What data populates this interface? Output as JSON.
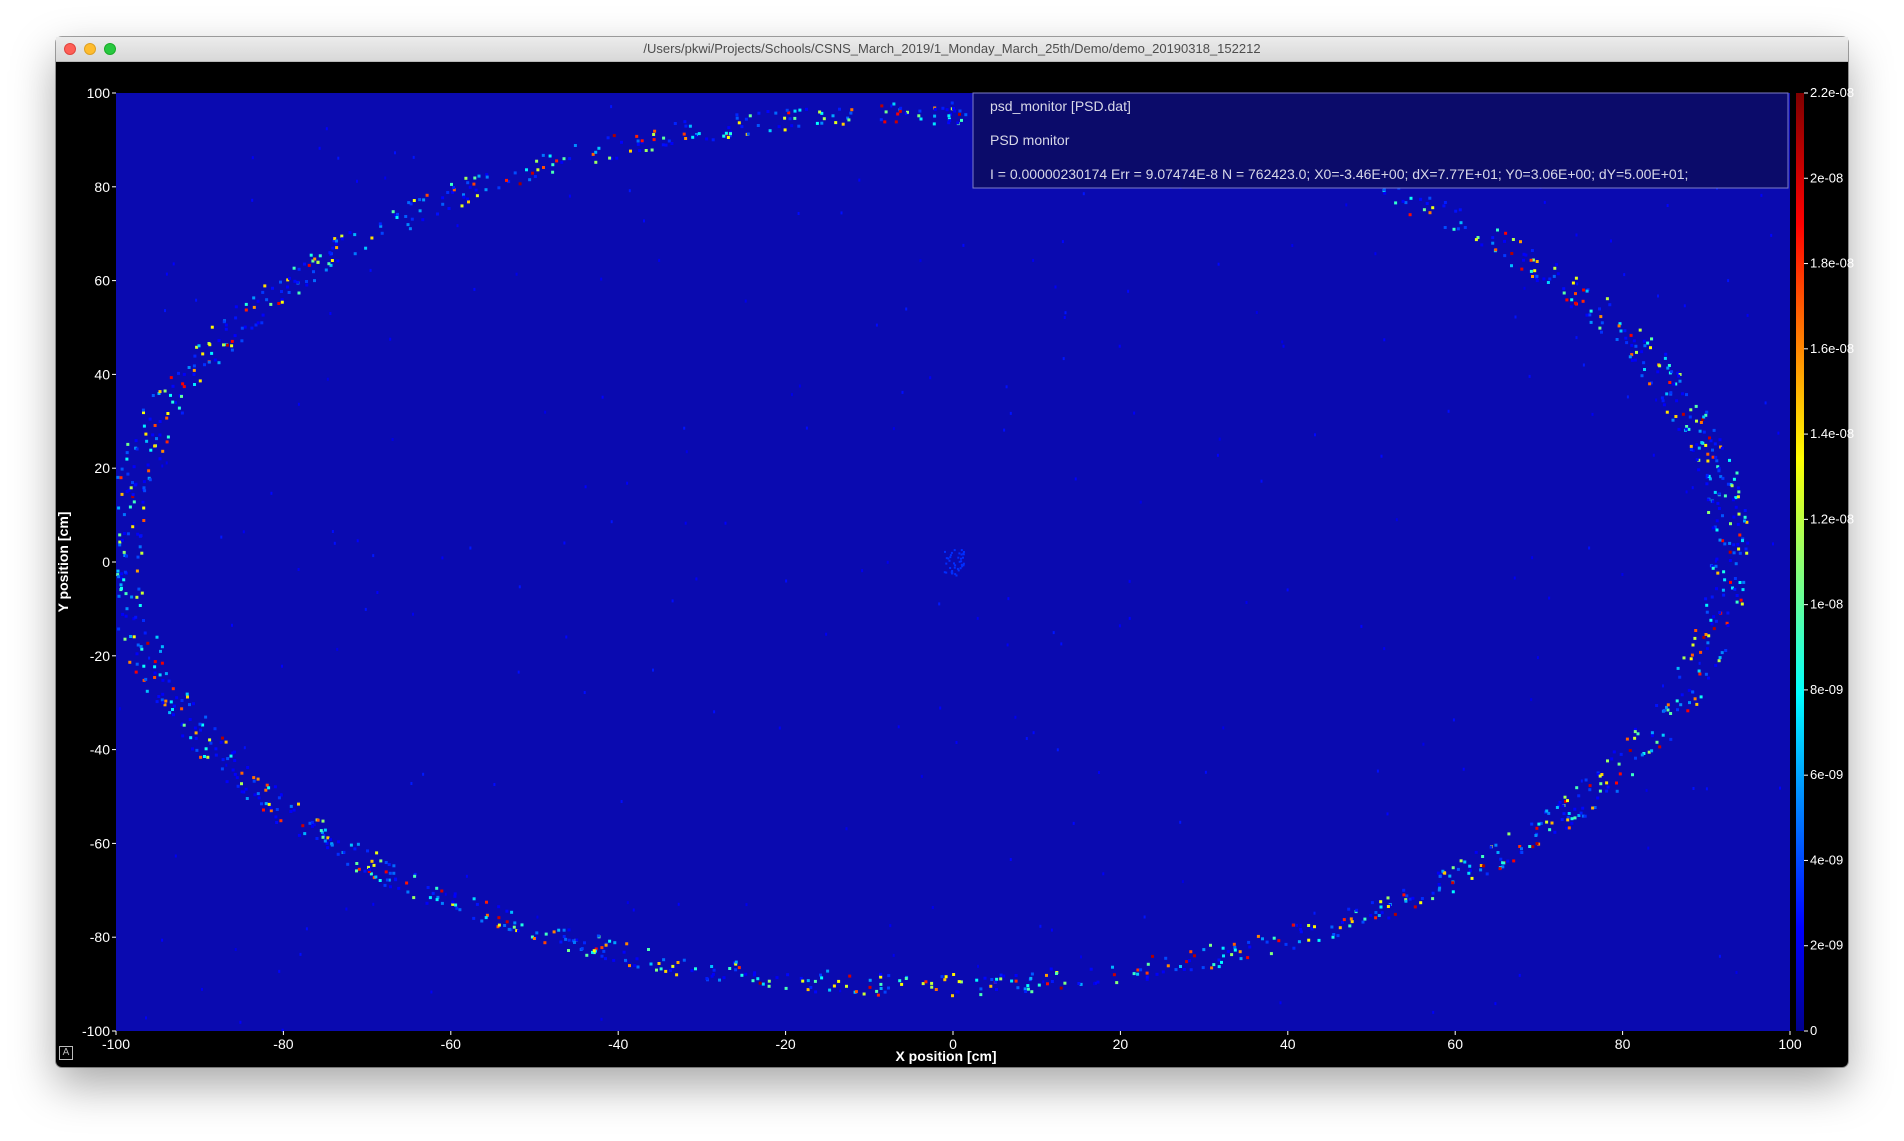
{
  "window": {
    "title": "/Users/pkwi/Projects/Schools/CSNS_March_2019/1_Monday_March_25th/Demo/demo_20190318_152212",
    "autoscale_button": "A"
  },
  "legend": {
    "line1": "psd_monitor [PSD.dat]",
    "line2": "PSD monitor",
    "line3": "I = 0.00000230174 Err = 9.07474E-8 N = 762423.0; X0=-3.46E+00; dX=7.77E+01; Y0=3.06E+00; dY=5.00E+01;"
  },
  "chart_data": {
    "type": "heatmap",
    "title": "",
    "xlabel": "X position [cm]",
    "ylabel": "Y position [cm]",
    "xlim": [
      -100,
      100
    ],
    "ylim": [
      -100,
      100
    ],
    "xticks": [
      -100,
      -80,
      -60,
      -40,
      -20,
      0,
      20,
      40,
      60,
      80,
      100
    ],
    "yticks": [
      -100,
      -80,
      -60,
      -40,
      -20,
      0,
      20,
      40,
      60,
      80,
      100
    ],
    "colormap": "jet",
    "background_color": "#0a0ab0",
    "colorbar": {
      "range": [
        0,
        2.2e-08
      ],
      "tick_labels": [
        "0",
        "2e-09",
        "4e-09",
        "6e-09",
        "8e-09",
        "1e-08",
        "1.2e-08",
        "1.4e-08",
        "1.6e-08",
        "1.8e-08",
        "2e-08",
        "2.2e-08"
      ]
    },
    "features": {
      "ring_center": [
        -3.46,
        3.06
      ],
      "ring_radius_x": 96,
      "ring_radius_y": 93,
      "central_spot": [
        0,
        0
      ]
    },
    "grid": false
  }
}
